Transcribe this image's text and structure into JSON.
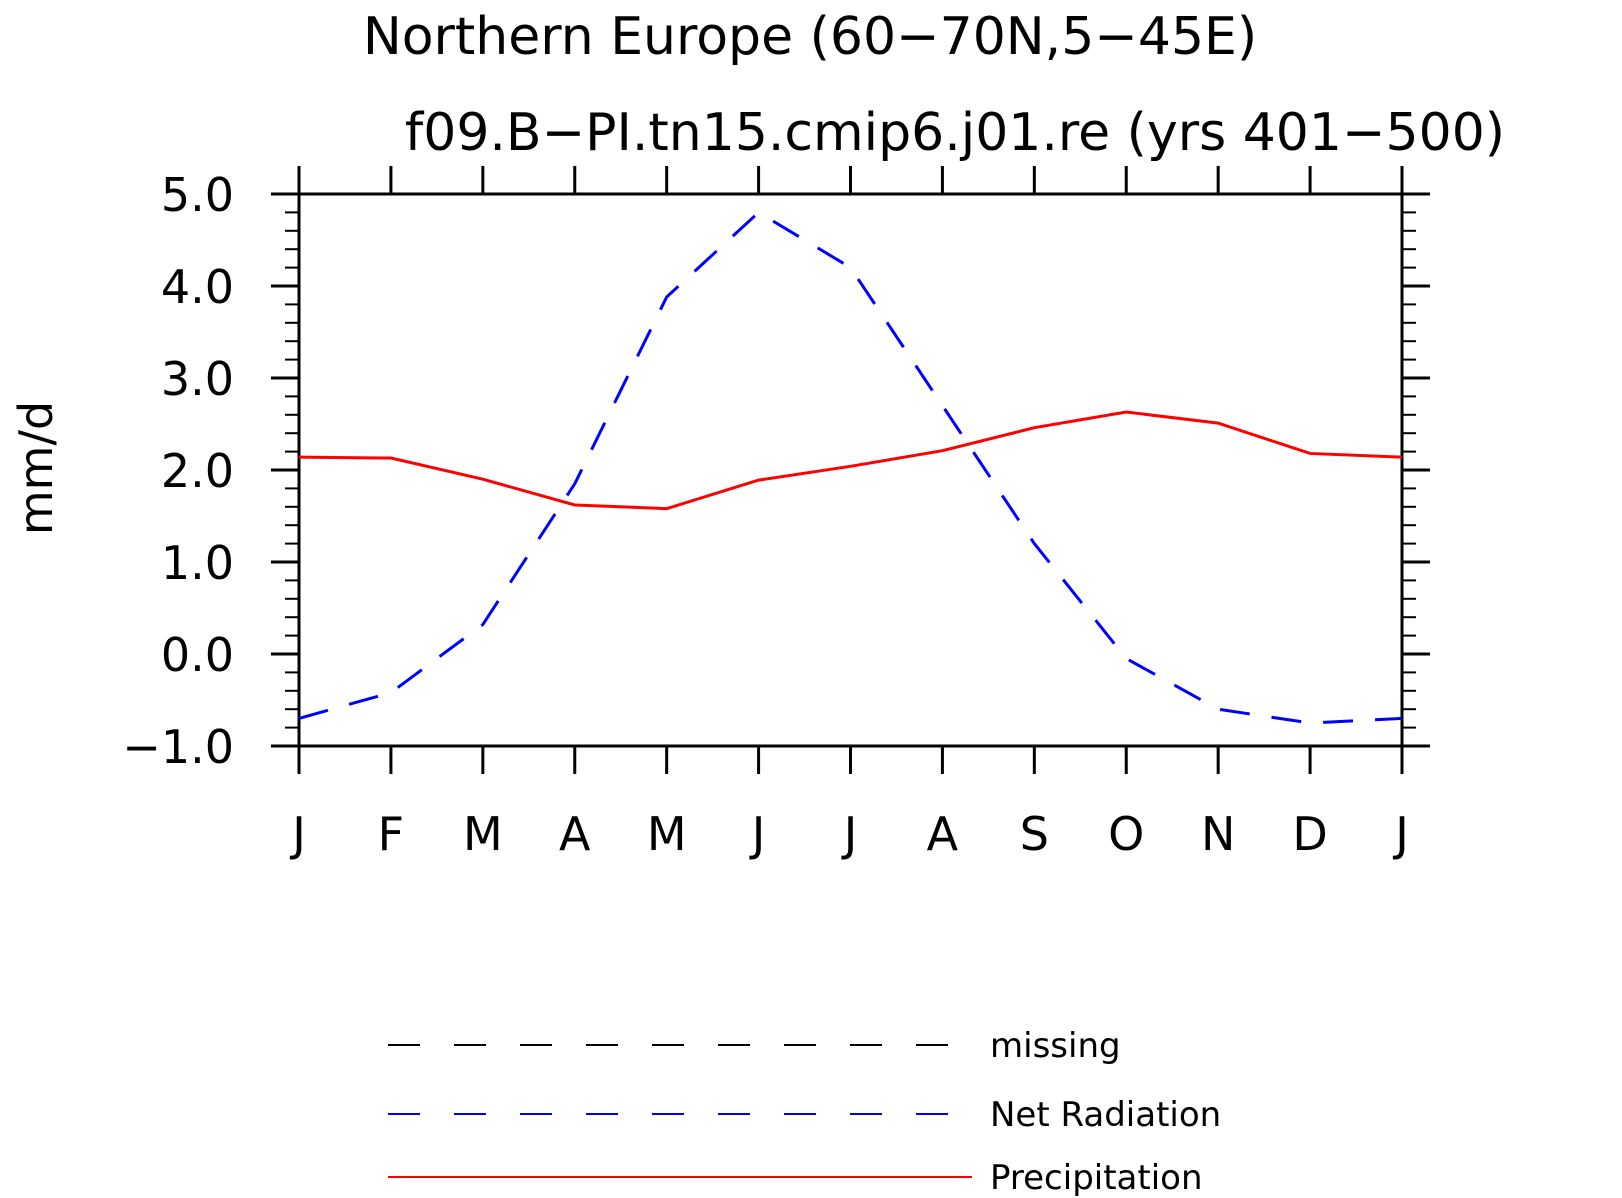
{
  "chart_data": {
    "type": "line",
    "title": "Northern Europe (60−70N,5−45E)",
    "subtitle": "f09.B−PI.tn15.cmip6.j01.re (yrs 401−500)",
    "xlabel": "",
    "ylabel": "mm/d",
    "ylim": [
      -1.0,
      5.0
    ],
    "yticks": [
      "5.0",
      "4.0",
      "3.0",
      "2.0",
      "1.0",
      "0.0",
      "−1.0"
    ],
    "ytick_values": [
      5,
      4,
      3,
      2,
      1,
      0,
      -1
    ],
    "categories": [
      "J",
      "F",
      "M",
      "A",
      "M",
      "J",
      "J",
      "A",
      "S",
      "O",
      "N",
      "D",
      "J"
    ],
    "grid": false,
    "legend_position": "bottom",
    "series": [
      {
        "name": "Net Radiation",
        "color": "#0000ff",
        "style": "dashed",
        "values": [
          -0.7,
          -0.42,
          0.32,
          1.85,
          3.88,
          4.8,
          4.2,
          2.7,
          1.2,
          -0.05,
          -0.6,
          -0.75,
          -0.7
        ]
      },
      {
        "name": "Precipitation",
        "color": "#ff0000",
        "style": "solid",
        "values": [
          2.14,
          2.13,
          1.9,
          1.62,
          1.58,
          1.89,
          2.04,
          2.21,
          2.46,
          2.63,
          2.51,
          2.18,
          2.14
        ]
      }
    ],
    "legend": [
      {
        "label": "missing",
        "color": "#000000",
        "style": "dashed"
      },
      {
        "label": "Net Radiation",
        "color": "#0000ff",
        "style": "dashed"
      },
      {
        "label": "Precipitation",
        "color": "#ff0000",
        "style": "solid"
      }
    ]
  }
}
